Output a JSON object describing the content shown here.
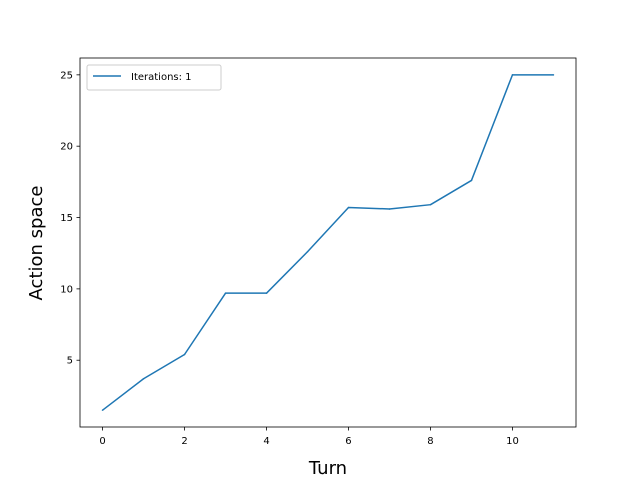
{
  "chart_data": {
    "type": "line",
    "title": "",
    "xlabel": "Turn",
    "ylabel": "Action space",
    "xlim": [
      -0.55,
      11.55
    ],
    "ylim": [
      0.32,
      26.18
    ],
    "grid": false,
    "legend_position": "upper-left",
    "x_ticks": [
      0,
      2,
      4,
      6,
      8,
      10
    ],
    "y_ticks": [
      5,
      10,
      15,
      20,
      25
    ],
    "series": [
      {
        "name": "Iterations: 1",
        "color": "#1f77b4",
        "x": [
          0,
          1,
          2,
          3,
          4,
          5,
          6,
          7,
          8,
          9,
          10,
          11
        ],
        "y": [
          1.5,
          3.7,
          5.4,
          9.7,
          9.7,
          12.6,
          15.7,
          15.6,
          15.9,
          17.6,
          25.0,
          25.0
        ]
      }
    ]
  }
}
